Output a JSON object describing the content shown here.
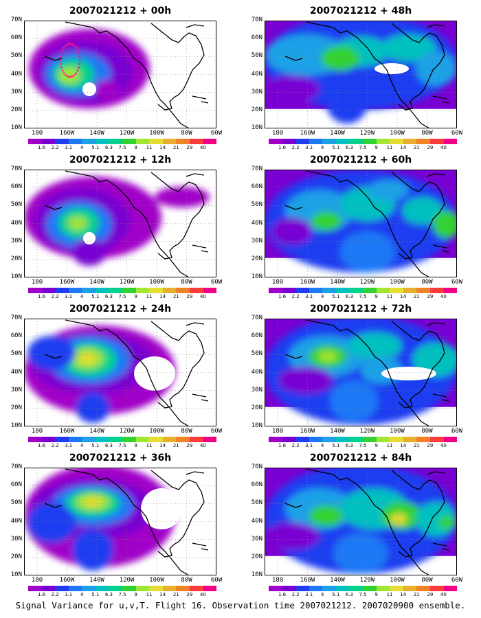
{
  "colorbar": {
    "labels": [
      "1.6",
      "2.2",
      "3.1",
      "4",
      "5.1",
      "6.3",
      "7.5",
      "9",
      "11",
      "14",
      "21",
      "29",
      "40"
    ],
    "colors": [
      "#a000c8",
      "#7800d2",
      "#1f3cf0",
      "#1e78f5",
      "#1ea0e6",
      "#00c0c0",
      "#00d28c",
      "#32d232",
      "#a0e632",
      "#e6dc32",
      "#e6af2d",
      "#f08228",
      "#fa3c3c",
      "#f00082"
    ]
  },
  "lat_labels": [
    "70N",
    "60N",
    "50N",
    "40N",
    "30N",
    "20N",
    "10N"
  ],
  "lon_labels": [
    "180",
    "160W",
    "140W",
    "120W",
    "100W",
    "80W",
    "60W"
  ],
  "panels": [
    {
      "title": "2007021212 + 00h"
    },
    {
      "title": "2007021212 + 48h"
    },
    {
      "title": "2007021212 + 12h"
    },
    {
      "title": "2007021212 + 60h"
    },
    {
      "title": "2007021212 + 24h"
    },
    {
      "title": "2007021212 + 72h"
    },
    {
      "title": "2007021212 + 36h"
    },
    {
      "title": "2007021212 + 84h"
    }
  ],
  "footer": "Signal Variance for u,v,T. Flight 16. Observation time 2007021212. 2007020900 ensemble."
}
